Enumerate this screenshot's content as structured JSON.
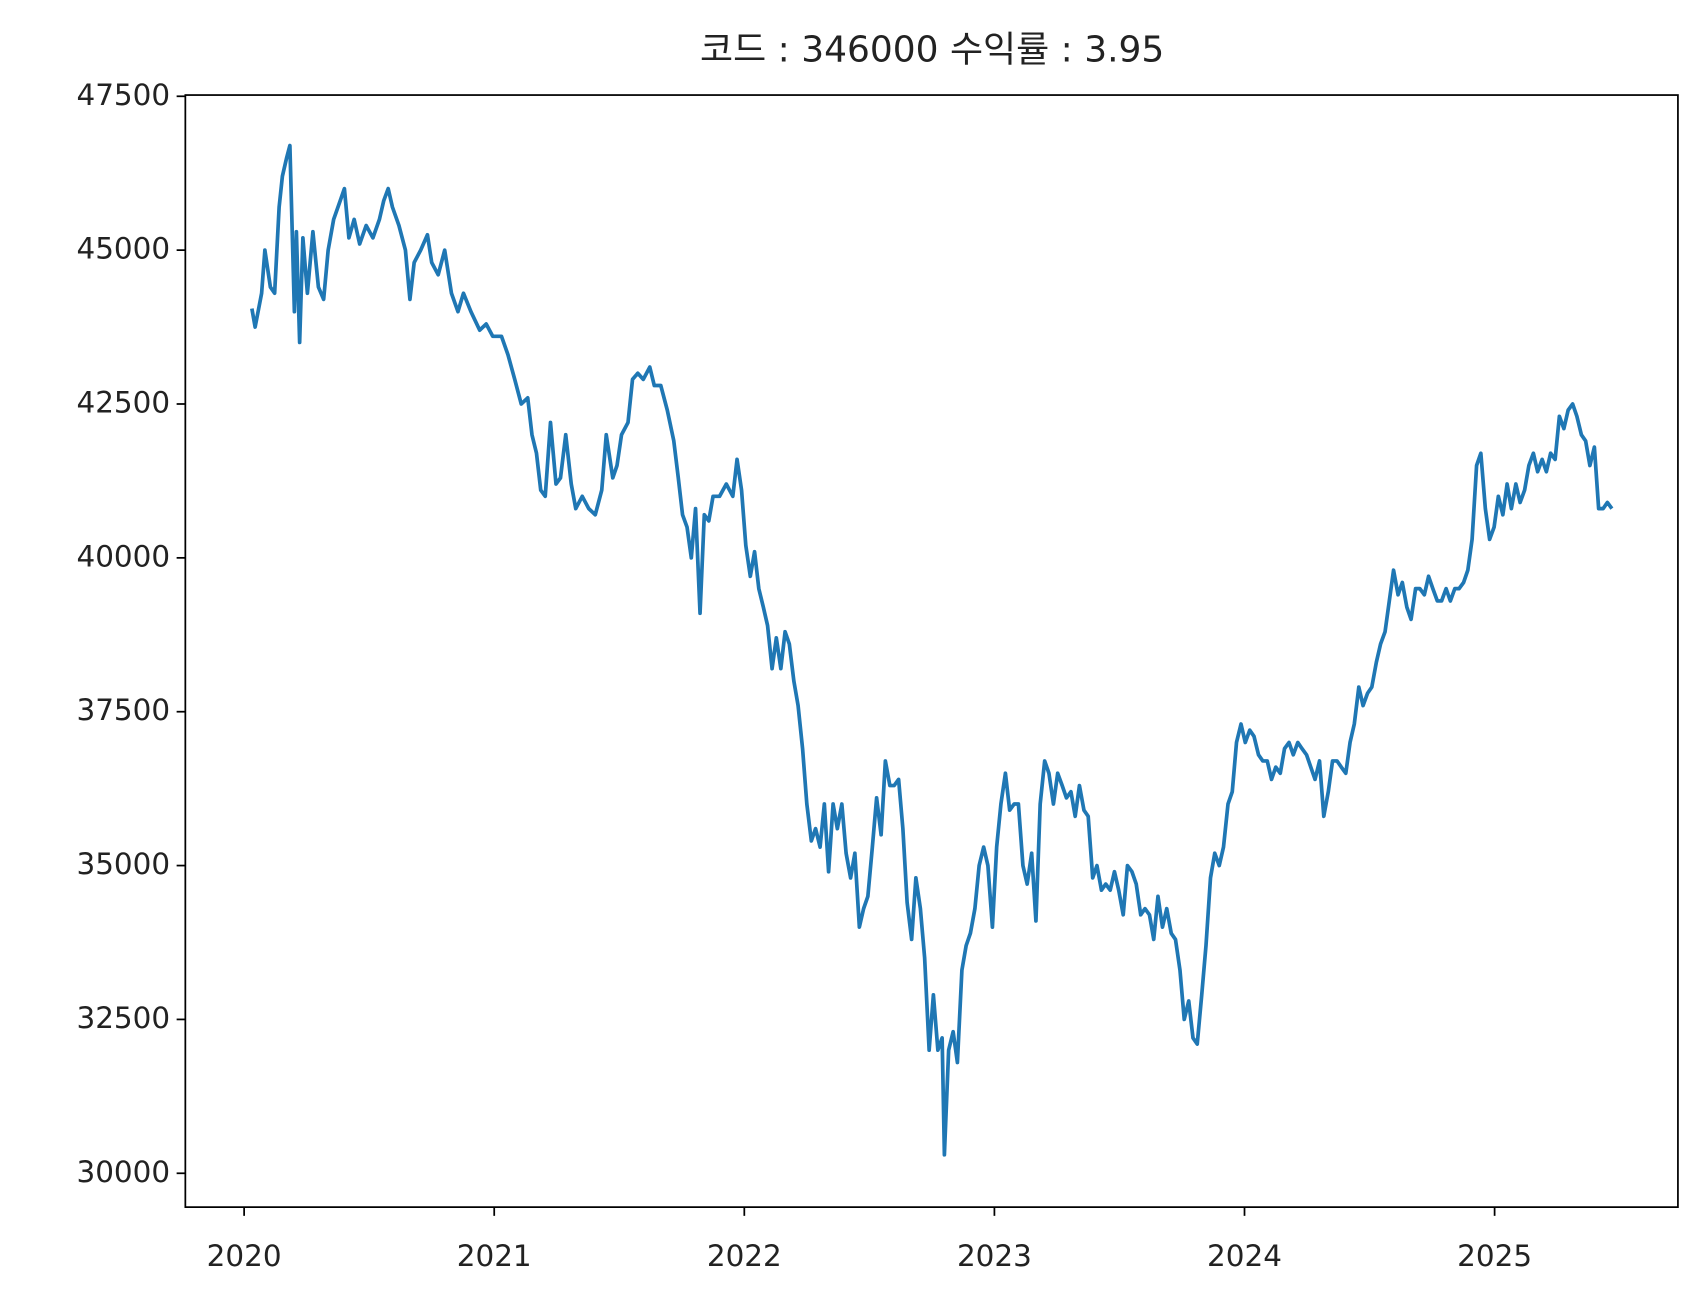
{
  "chart_data": {
    "type": "line",
    "title": "코드 : 346000 수익률 : 3.95",
    "color": "#1f77b4",
    "xlim": [
      2019.765,
      2025.733
    ],
    "xticks": [
      2020,
      2021,
      2022,
      2023,
      2024,
      2025
    ],
    "ylim": [
      29450,
      47520
    ],
    "yticks": [
      30000,
      32500,
      35000,
      37500,
      40000,
      42500,
      45000,
      47500
    ],
    "x": [
      2020.031,
      2020.044,
      2020.07,
      2020.083,
      2020.105,
      2020.122,
      2020.14,
      2020.153,
      2020.17,
      2020.183,
      2020.201,
      2020.209,
      2020.222,
      2020.235,
      2020.253,
      2020.275,
      2020.297,
      2020.318,
      2020.336,
      2020.358,
      2020.384,
      2020.401,
      2020.419,
      2020.44,
      2020.462,
      2020.488,
      2020.515,
      2020.541,
      2020.558,
      2020.576,
      2020.593,
      2020.619,
      2020.645,
      2020.663,
      2020.68,
      2020.706,
      2020.733,
      2020.75,
      2020.776,
      2020.802,
      2020.829,
      2020.855,
      2020.877,
      2020.907,
      2020.942,
      2020.968,
      2020.994,
      2021.029,
      2021.055,
      2021.082,
      2021.108,
      2021.134,
      2021.151,
      2021.169,
      2021.186,
      2021.204,
      2021.225,
      2021.247,
      2021.265,
      2021.286,
      2021.308,
      2021.326,
      2021.352,
      2021.378,
      2021.404,
      2021.43,
      2021.448,
      2021.474,
      2021.491,
      2021.509,
      2021.535,
      2021.553,
      2021.574,
      2021.596,
      2021.622,
      2021.64,
      2021.666,
      2021.692,
      2021.718,
      2021.736,
      2021.753,
      2021.771,
      2021.788,
      2021.805,
      2021.823,
      2021.84,
      2021.858,
      2021.875,
      2021.901,
      2021.928,
      2021.954,
      2021.971,
      2021.989,
      2022.006,
      2022.024,
      2022.041,
      2022.058,
      2022.076,
      2022.093,
      2022.111,
      2022.128,
      2022.146,
      2022.163,
      2022.18,
      2022.198,
      2022.215,
      2022.233,
      2022.25,
      2022.268,
      2022.285,
      2022.303,
      2022.32,
      2022.337,
      2022.355,
      2022.372,
      2022.39,
      2022.407,
      2022.425,
      2022.442,
      2022.46,
      2022.477,
      2022.494,
      2022.512,
      2022.529,
      2022.547,
      2022.564,
      2022.582,
      2022.599,
      2022.617,
      2022.634,
      2022.651,
      2022.669,
      2022.686,
      2022.704,
      2022.721,
      2022.739,
      2022.756,
      2022.774,
      2022.791,
      2022.8,
      2022.817,
      2022.835,
      2022.852,
      2022.87,
      2022.887,
      2022.904,
      2022.922,
      2022.939,
      2022.957,
      2022.974,
      2022.992,
      2023.009,
      2023.026,
      2023.044,
      2023.061,
      2023.079,
      2023.096,
      2023.114,
      2023.131,
      2023.149,
      2023.166,
      2023.183,
      2023.201,
      2023.218,
      2023.236,
      2023.253,
      2023.271,
      2023.288,
      2023.306,
      2023.323,
      2023.34,
      2023.358,
      2023.375,
      2023.393,
      2023.41,
      2023.428,
      2023.445,
      2023.463,
      2023.48,
      2023.497,
      2023.515,
      2023.532,
      2023.55,
      2023.567,
      2023.585,
      2023.602,
      2023.62,
      2023.637,
      2023.654,
      2023.672,
      2023.689,
      2023.707,
      2023.724,
      2023.742,
      2023.759,
      2023.777,
      2023.794,
      2023.811,
      2023.829,
      2023.846,
      2023.864,
      2023.881,
      2023.899,
      2023.916,
      2023.934,
      2023.951,
      2023.968,
      2023.986,
      2024.003,
      2024.021,
      2024.038,
      2024.056,
      2024.073,
      2024.091,
      2024.108,
      2024.125,
      2024.143,
      2024.16,
      2024.178,
      2024.195,
      2024.213,
      2024.23,
      2024.248,
      2024.265,
      2024.282,
      2024.3,
      2024.317,
      2024.335,
      2024.352,
      2024.37,
      2024.387,
      2024.405,
      2024.422,
      2024.439,
      2024.457,
      2024.474,
      2024.492,
      2024.509,
      2024.527,
      2024.544,
      2024.562,
      2024.579,
      2024.596,
      2024.614,
      2024.631,
      2024.649,
      2024.666,
      2024.684,
      2024.701,
      2024.719,
      2024.736,
      2024.753,
      2024.771,
      2024.788,
      2024.806,
      2024.823,
      2024.841,
      2024.858,
      2024.876,
      2024.893,
      2024.91,
      2024.928,
      2024.945,
      2024.963,
      2024.98,
      2024.998,
      2025.015,
      2025.033,
      2025.05,
      2025.067,
      2025.085,
      2025.102,
      2025.12,
      2025.137,
      2025.155,
      2025.172,
      2025.19,
      2025.207,
      2025.224,
      2025.242,
      2025.259,
      2025.277,
      2025.294,
      2025.312,
      2025.329,
      2025.347,
      2025.364,
      2025.381,
      2025.399,
      2025.416,
      2025.434,
      2025.451,
      2025.469
    ],
    "values": [
      44050,
      43750,
      44300,
      45000,
      44400,
      44300,
      45700,
      46200,
      46500,
      46700,
      44000,
      45300,
      43500,
      45200,
      44300,
      45300,
      44400,
      44200,
      45000,
      45500,
      45800,
      46000,
      45200,
      45500,
      45100,
      45400,
      45200,
      45500,
      45800,
      46000,
      45700,
      45400,
      45000,
      44200,
      44800,
      45000,
      45250,
      44800,
      44600,
      45000,
      44300,
      44000,
      44300,
      44000,
      43700,
      43800,
      43600,
      43600,
      43300,
      42900,
      42500,
      42600,
      42000,
      41700,
      41100,
      41000,
      42200,
      41200,
      41300,
      42000,
      41200,
      40800,
      41000,
      40800,
      40700,
      41100,
      42000,
      41300,
      41500,
      42000,
      42200,
      42900,
      43000,
      42900,
      43100,
      42800,
      42800,
      42400,
      41900,
      41300,
      40700,
      40500,
      40000,
      40800,
      39100,
      40700,
      40600,
      41000,
      41000,
      41200,
      41000,
      41600,
      41100,
      40200,
      39700,
      40100,
      39500,
      39200,
      38900,
      38200,
      38700,
      38200,
      38800,
      38600,
      38000,
      37600,
      36900,
      36000,
      35400,
      35600,
      35300,
      36000,
      34900,
      36000,
      35600,
      36000,
      35200,
      34800,
      35200,
      34000,
      34300,
      34500,
      35300,
      36100,
      35500,
      36700,
      36300,
      36300,
      36400,
      35600,
      34400,
      33800,
      34800,
      34300,
      33500,
      32000,
      32900,
      32000,
      32200,
      30300,
      32000,
      32300,
      31800,
      33300,
      33700,
      33900,
      34300,
      35000,
      35300,
      35000,
      34000,
      35300,
      36000,
      36500,
      35900,
      36000,
      36000,
      35000,
      34700,
      35200,
      34100,
      36000,
      36700,
      36500,
      36000,
      36500,
      36300,
      36100,
      36200,
      35800,
      36300,
      35900,
      35800,
      34800,
      35000,
      34600,
      34700,
      34600,
      34900,
      34600,
      34200,
      35000,
      34900,
      34700,
      34200,
      34300,
      34200,
      33800,
      34500,
      34000,
      34300,
      33900,
      33800,
      33300,
      32500,
      32800,
      32200,
      32100,
      32900,
      33700,
      34800,
      35200,
      35000,
      35300,
      36000,
      36200,
      37000,
      37300,
      37000,
      37200,
      37100,
      36800,
      36700,
      36700,
      36400,
      36600,
      36500,
      36900,
      37000,
      36800,
      37000,
      36900,
      36800,
      36600,
      36400,
      36700,
      35800,
      36200,
      36700,
      36700,
      36600,
      36500,
      37000,
      37300,
      37900,
      37600,
      37800,
      37900,
      38300,
      38600,
      38800,
      39300,
      39800,
      39400,
      39600,
      39200,
      39000,
      39500,
      39500,
      39400,
      39700,
      39500,
      39300,
      39300,
      39500,
      39300,
      39500,
      39500,
      39600,
      39800,
      40300,
      41500,
      41700,
      40800,
      40300,
      40500,
      41000,
      40700,
      41200,
      40800,
      41200,
      40900,
      41100,
      41500,
      41700,
      41400,
      41600,
      41400,
      41700,
      41600,
      42300,
      42100,
      42400,
      42500,
      42300,
      42000,
      41900,
      41500,
      41800,
      40800,
      40800,
      40900,
      40800
    ]
  }
}
